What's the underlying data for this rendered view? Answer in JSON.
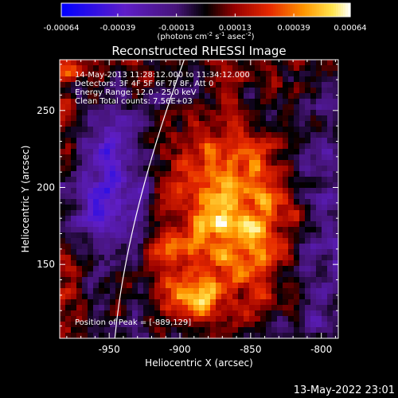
{
  "chart_data": {
    "type": "heatmap",
    "title": "Reconstructed RHESSI Image",
    "xlabel": "Heliocentric X (arcsec)",
    "ylabel": "Heliocentric Y (arcsec)",
    "x_ticks": [
      "-950",
      "-900",
      "-850",
      "-800"
    ],
    "x_tick_values": [
      -950,
      -900,
      -850,
      -800
    ],
    "y_ticks": [
      "150",
      "200",
      "250"
    ],
    "y_tick_values": [
      150,
      200,
      250
    ],
    "xlim": [
      -985,
      -788
    ],
    "ylim": [
      102,
      283
    ],
    "colorbar": {
      "ticks": [
        "-0.00064",
        "-0.00039",
        "-0.00013",
        "0.00013",
        "0.00039",
        "0.00064"
      ],
      "range": [
        -0.00064,
        0.00064
      ],
      "unit_label": "(photons cm^-2 s^-1 asec^-2)"
    },
    "annotations": {
      "time": "14-May-2013 11:28:12.000 to 11:34:12.000",
      "detectors": "Detectors: 3F 4F 5F 6F 7F 8F, Att 0",
      "energy": "Energy Range: 12.0 - 25.0 keV",
      "clean": "Clean    Total counts: 7.56E+03",
      "peak": "Position of Peak = [-889,129]"
    },
    "timestamp": "13-May-2022 23:01"
  }
}
